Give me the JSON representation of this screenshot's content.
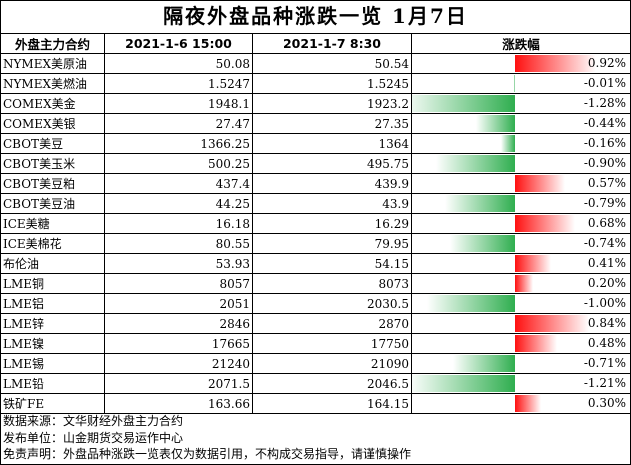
{
  "title": "隔夜外盘品种涨跌一览 1月7日",
  "chart_data": {
    "type": "table",
    "columns": [
      "外盘主力合约",
      "2021-1-6 15:00",
      "2021-1-7 8:30",
      "涨跌幅"
    ],
    "rows": [
      {
        "name": "NYMEX美原油",
        "prev": "50.08",
        "curr": "50.54",
        "chg": 0.92,
        "chg_label": "0.92%"
      },
      {
        "name": "NYMEX美燃油",
        "prev": "1.5247",
        "curr": "1.5245",
        "chg": -0.01,
        "chg_label": "-0.01%"
      },
      {
        "name": "COMEX美金",
        "prev": "1948.1",
        "curr": "1923.2",
        "chg": -1.28,
        "chg_label": "-1.28%"
      },
      {
        "name": "COMEX美银",
        "prev": "27.47",
        "curr": "27.35",
        "chg": -0.44,
        "chg_label": "-0.44%"
      },
      {
        "name": "CBOT美豆",
        "prev": "1366.25",
        "curr": "1364",
        "chg": -0.16,
        "chg_label": "-0.16%"
      },
      {
        "name": "CBOT美玉米",
        "prev": "500.25",
        "curr": "495.75",
        "chg": -0.9,
        "chg_label": "-0.90%"
      },
      {
        "name": "CBOT美豆粕",
        "prev": "437.4",
        "curr": "439.9",
        "chg": 0.57,
        "chg_label": "0.57%"
      },
      {
        "name": "CBOT美豆油",
        "prev": "44.25",
        "curr": "43.9",
        "chg": -0.79,
        "chg_label": "-0.79%"
      },
      {
        "name": "ICE美糖",
        "prev": "16.18",
        "curr": "16.29",
        "chg": 0.68,
        "chg_label": "0.68%"
      },
      {
        "name": "ICE美棉花",
        "prev": "80.55",
        "curr": "79.95",
        "chg": -0.74,
        "chg_label": "-0.74%"
      },
      {
        "name": "布伦油",
        "prev": "53.93",
        "curr": "54.15",
        "chg": 0.41,
        "chg_label": "0.41%"
      },
      {
        "name": "LME铜",
        "prev": "8057",
        "curr": "8073",
        "chg": 0.2,
        "chg_label": "0.20%"
      },
      {
        "name": "LME铝",
        "prev": "2051",
        "curr": "2030.5",
        "chg": -1.0,
        "chg_label": "-1.00%"
      },
      {
        "name": "LME锌",
        "prev": "2846",
        "curr": "2870",
        "chg": 0.84,
        "chg_label": "0.84%"
      },
      {
        "name": "LME镍",
        "prev": "17665",
        "curr": "17750",
        "chg": 0.48,
        "chg_label": "0.48%"
      },
      {
        "name": "LME锡",
        "prev": "21240",
        "curr": "21090",
        "chg": -0.71,
        "chg_label": "-0.71%"
      },
      {
        "name": "LME铅",
        "prev": "2071.5",
        "curr": "2046.5",
        "chg": -1.21,
        "chg_label": "-1.21%"
      },
      {
        "name": "铁矿FE",
        "prev": "163.66",
        "curr": "164.15",
        "chg": 0.3,
        "chg_label": "0.30%"
      }
    ],
    "colors": {
      "up": "#ff1010",
      "down": "#2fae4f"
    }
  },
  "notes": {
    "source": "数据来源：文华财经外盘主力合约",
    "publisher": "发布单位：山金期货交易运作中心",
    "disclaimer": "免责声明：外盘品种涨跌一览表仅为数据引用，不构成交易指导，请谨慎操作"
  }
}
